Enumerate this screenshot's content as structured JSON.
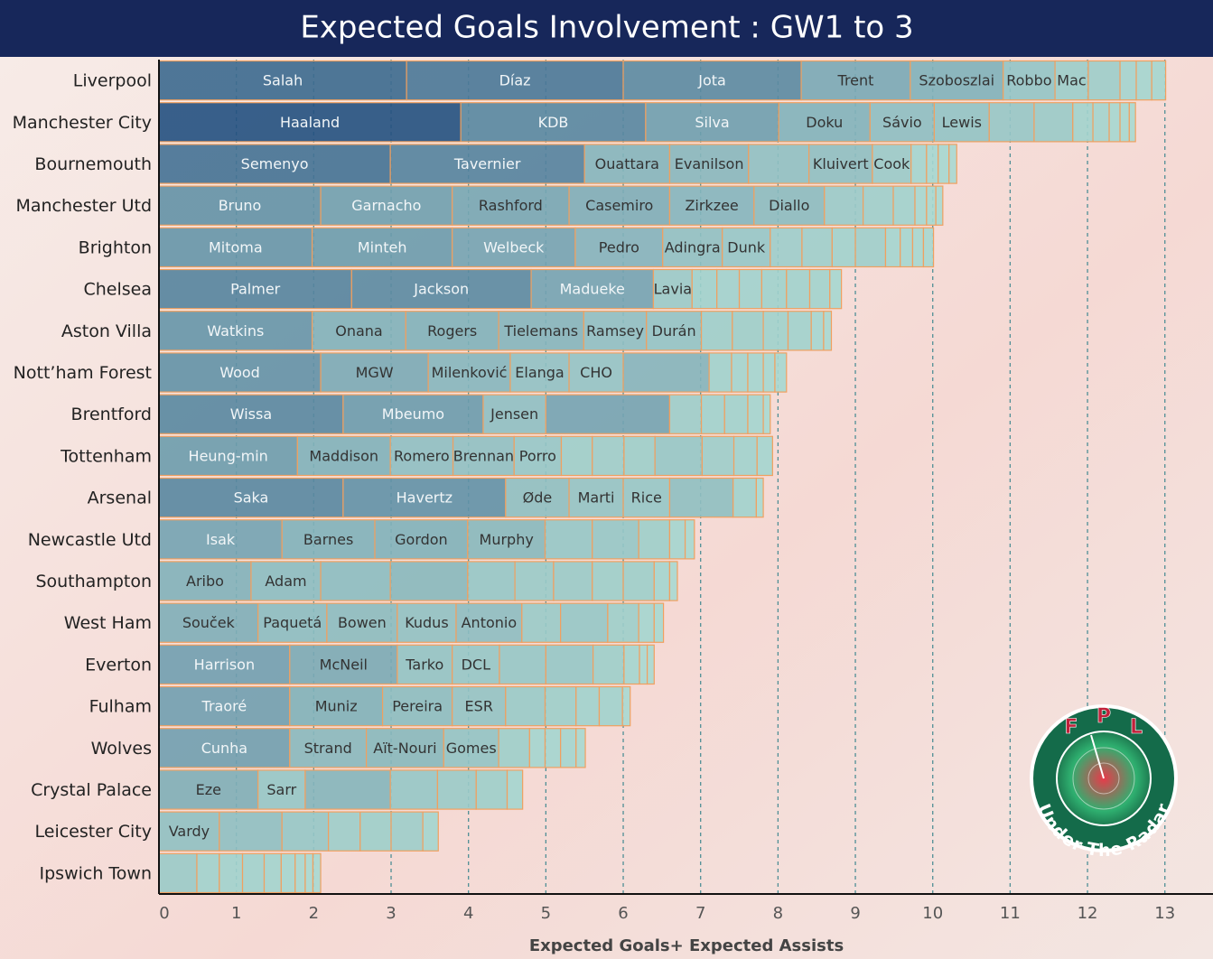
{
  "chart_data": {
    "type": "stacked-bar",
    "title": "Expected Goals Involvement : GW1 to 3",
    "x_label": "Expected Goals+ Expected Assists",
    "xlim": [
      0,
      13.4
    ],
    "xticks": [
      0,
      1,
      2,
      3,
      4,
      5,
      6,
      7,
      8,
      9,
      10,
      11,
      12,
      13
    ],
    "grid": true,
    "color_scale": [
      "#abdcd3",
      "#24507f"
    ],
    "border_color": "#f0a060",
    "teams": [
      {
        "name": "Liverpool",
        "players": [
          "Salah",
          "Díaz",
          "Jota",
          "Trent",
          "Szoboszlai",
          "Robbo",
          "Mac",
          null,
          null,
          null,
          null
        ],
        "values": [
          3.2,
          2.8,
          2.3,
          1.41,
          1.2,
          0.67,
          0.43,
          0.41,
          0.21,
          0.2,
          0.18
        ]
      },
      {
        "name": "Manchester City",
        "players": [
          "Haaland",
          "KDB",
          "Silva",
          "Doku",
          "Sávio",
          "Lewis",
          null,
          null,
          null,
          null,
          null,
          null,
          null
        ],
        "values": [
          3.9,
          2.39,
          1.72,
          1.18,
          0.83,
          0.71,
          0.58,
          0.5,
          0.26,
          0.21,
          0.14,
          0.12,
          0.08
        ]
      },
      {
        "name": "Bournemouth",
        "players": [
          "Semenyo",
          "Tavernier",
          "Ouattara",
          "Evanilson",
          null,
          "Kluivert",
          "Cook",
          null,
          null,
          null,
          null
        ],
        "values": [
          2.99,
          2.51,
          1.1,
          1.02,
          0.78,
          0.82,
          0.5,
          0.2,
          0.15,
          0.14,
          0.1
        ]
      },
      {
        "name": "Manchester Utd",
        "players": [
          "Bruno",
          "Garnacho",
          "Rashford",
          "Casemiro",
          "Zirkzee",
          "Diallo",
          null,
          null,
          null,
          null,
          null,
          null
        ],
        "values": [
          2.09,
          1.7,
          1.51,
          1.3,
          1.09,
          0.91,
          0.5,
          0.39,
          0.28,
          0.15,
          0.12,
          0.09
        ]
      },
      {
        "name": "Brighton",
        "players": [
          "Mitoma",
          "Minteh",
          "Welbeck",
          "Pedro",
          "Adingra",
          "Dunk",
          null,
          null,
          null,
          null,
          null,
          null,
          null,
          null
        ],
        "values": [
          1.98,
          1.81,
          1.59,
          1.13,
          0.77,
          0.62,
          0.41,
          0.39,
          0.3,
          0.39,
          0.19,
          0.16,
          0.14,
          0.13
        ]
      },
      {
        "name": "Chelsea",
        "players": [
          "Palmer",
          "Jackson",
          "Madueke",
          "Lavia",
          null,
          null,
          null,
          null,
          null,
          null,
          null
        ],
        "values": [
          2.49,
          2.32,
          1.58,
          0.5,
          0.32,
          0.29,
          0.29,
          0.32,
          0.3,
          0.26,
          0.15
        ]
      },
      {
        "name": "Aston Villa",
        "players": [
          "Watkins",
          "Onana",
          "Rogers",
          "Tielemans",
          "Ramsey",
          "Durán",
          null,
          null,
          null,
          null,
          null,
          null
        ],
        "values": [
          1.98,
          1.21,
          1.2,
          1.1,
          0.81,
          0.71,
          0.4,
          0.4,
          0.32,
          0.3,
          0.16,
          0.1
        ]
      },
      {
        "name": "Nott’ham Forest",
        "players": [
          "Wood",
          "MGW",
          "Milenković",
          "Elanga",
          "CHO",
          null,
          null,
          null,
          null,
          null,
          null
        ],
        "values": [
          2.09,
          1.39,
          1.06,
          0.76,
          0.7,
          1.11,
          0.29,
          0.21,
          0.2,
          0.15,
          0.15
        ]
      },
      {
        "name": "Brentford",
        "players": [
          "Wissa",
          "Mbeumo",
          "Jensen",
          null,
          null,
          null,
          null,
          null,
          null
        ],
        "values": [
          2.38,
          1.81,
          0.81,
          1.6,
          0.41,
          0.3,
          0.3,
          0.2,
          0.09
        ]
      },
      {
        "name": "Tottenham",
        "players": [
          "Heung-min",
          "Maddison",
          "Romero",
          "Brennan",
          "Porro",
          null,
          null,
          null,
          null,
          null,
          null,
          null
        ],
        "values": [
          1.79,
          1.2,
          0.81,
          0.79,
          0.61,
          0.4,
          0.41,
          0.4,
          0.61,
          0.41,
          0.3,
          0.2
        ]
      },
      {
        "name": "Arsenal",
        "players": [
          "Saka",
          "Havertz",
          "Øde",
          "Marti",
          "Rice",
          null,
          null,
          null
        ],
        "values": [
          2.38,
          2.1,
          0.82,
          0.7,
          0.6,
          0.82,
          0.3,
          0.09
        ]
      },
      {
        "name": "Newcastle Utd",
        "players": [
          "Isak",
          "Barnes",
          "Gordon",
          "Murphy",
          null,
          null,
          null,
          null,
          null
        ],
        "values": [
          1.59,
          1.2,
          1.2,
          1.0,
          0.61,
          0.6,
          0.4,
          0.2,
          0.12
        ]
      },
      {
        "name": "Southampton",
        "players": [
          "Aribo",
          "Adam",
          null,
          null,
          null,
          null,
          null,
          null,
          null,
          null,
          null
        ],
        "values": [
          1.19,
          0.9,
          0.9,
          1.0,
          0.61,
          0.5,
          0.5,
          0.4,
          0.4,
          0.2,
          0.1
        ]
      },
      {
        "name": "West Ham",
        "players": [
          "Souček",
          "Paquetá",
          "Bowen",
          "Kudus",
          "Antonio",
          null,
          null,
          null,
          null,
          null
        ],
        "values": [
          1.28,
          0.89,
          0.91,
          0.76,
          0.85,
          0.5,
          0.61,
          0.4,
          0.2,
          0.12
        ]
      },
      {
        "name": "Everton",
        "players": [
          "Harrison",
          "McNeil",
          "Tarko",
          "DCL",
          null,
          null,
          null,
          null,
          null,
          null
        ],
        "values": [
          1.69,
          1.39,
          0.71,
          0.61,
          0.6,
          0.61,
          0.4,
          0.2,
          0.1,
          0.09
        ]
      },
      {
        "name": "Fulham",
        "players": [
          "Traoré",
          "Muniz",
          "Pereira",
          "ESR",
          null,
          null,
          null,
          null,
          null
        ],
        "values": [
          1.69,
          1.2,
          0.9,
          0.69,
          0.51,
          0.4,
          0.3,
          0.3,
          0.1
        ]
      },
      {
        "name": "Wolves",
        "players": [
          "Cunha",
          "Strand",
          "Aït-Nouri",
          "Gomes",
          null,
          null,
          null,
          null,
          null
        ],
        "values": [
          1.69,
          0.99,
          1.0,
          0.71,
          0.4,
          0.2,
          0.2,
          0.2,
          0.12
        ]
      },
      {
        "name": "Crystal Palace",
        "players": [
          "Eze",
          "Sarr",
          null,
          null,
          null,
          null,
          null
        ],
        "values": [
          1.28,
          0.61,
          1.1,
          0.61,
          0.5,
          0.4,
          0.2
        ]
      },
      {
        "name": "Leicester City",
        "players": [
          "Vardy",
          null,
          null,
          null,
          null,
          null,
          null
        ],
        "values": [
          0.78,
          0.81,
          0.6,
          0.41,
          0.4,
          0.41,
          0.2
        ]
      },
      {
        "name": "Ipswich Town",
        "players": [
          null,
          null,
          null,
          null,
          null,
          null,
          null,
          null,
          null
        ],
        "values": [
          0.49,
          0.29,
          0.3,
          0.28,
          0.22,
          0.18,
          0.13,
          0.1,
          0.1
        ]
      }
    ]
  },
  "logo": {
    "letters": [
      "F",
      "P",
      "L"
    ],
    "text": "Under The Radar"
  }
}
